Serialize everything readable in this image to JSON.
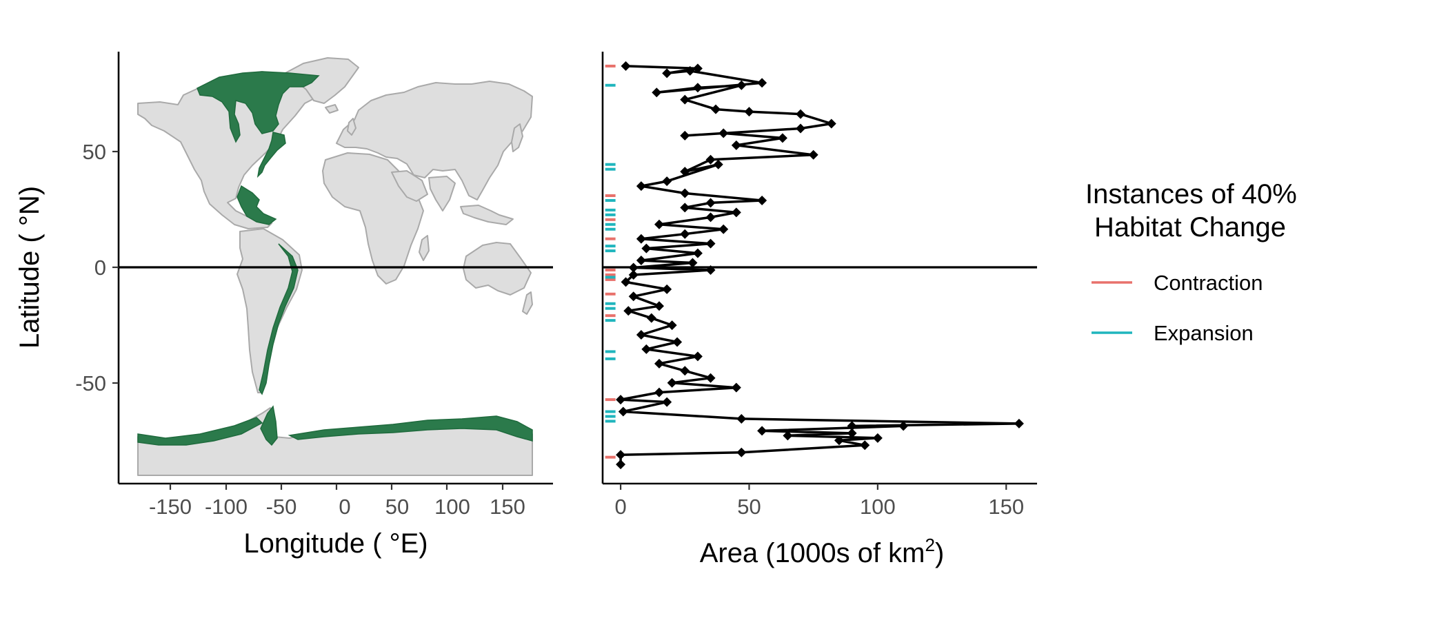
{
  "figure": {
    "y_axis_title": "Latitude ( °N)",
    "x_axis_title_map": "Longitude ( °E)",
    "x_axis_title_area_main": "Area (1000s of km",
    "x_axis_title_area_sup": "2",
    "x_axis_title_area_end": ")"
  },
  "legend": {
    "title_line1": "Instances of 40%",
    "title_line2": "Habitat Change",
    "items": [
      {
        "label": "Contraction",
        "color": "#e8716b"
      },
      {
        "label": "Expansion",
        "color": "#1fb5bd"
      }
    ]
  },
  "colors": {
    "habitat": "#2b7a4b",
    "land": "#dedede",
    "land_outline": "#a9a9a9",
    "series": "#000000"
  },
  "chart_data": [
    {
      "type": "map",
      "xlabel": "Longitude ( °E)",
      "ylabel": "Latitude ( °N)",
      "xlim": [
        -180,
        180
      ],
      "ylim": [
        -90,
        90
      ],
      "x_ticks": [
        -150,
        -100,
        -50,
        0,
        50,
        100,
        150
      ],
      "y_ticks": [
        -50,
        0,
        50
      ],
      "reference_line": {
        "y": 0
      },
      "layer": "coastal habitat (green) along the Americas and Antarctica"
    },
    {
      "type": "line",
      "xlabel": "Area (1000s of km2)",
      "ylabel": "Latitude ( °N)",
      "xlim": [
        -7,
        162
      ],
      "ylim": [
        -90,
        90
      ],
      "x_ticks": [
        0,
        50,
        100,
        150
      ],
      "reference_line": {
        "y": 0
      },
      "orientation": "area (x) by latitude (y)",
      "series": [
        {
          "points": [
            [
              2,
              84
            ],
            [
              30,
              83
            ],
            [
              18,
              81
            ],
            [
              27,
              82
            ],
            [
              55,
              77
            ],
            [
              14,
              73
            ],
            [
              30,
              75
            ],
            [
              47,
              76
            ],
            [
              25,
              70
            ],
            [
              37,
              66
            ],
            [
              50,
              65
            ],
            [
              70,
              64
            ],
            [
              82,
              60
            ],
            [
              70,
              58
            ],
            [
              25,
              55
            ],
            [
              40,
              56
            ],
            [
              63,
              54
            ],
            [
              45,
              51
            ],
            [
              75,
              47
            ],
            [
              35,
              45
            ],
            [
              25,
              40
            ],
            [
              38,
              43
            ],
            [
              18,
              36
            ],
            [
              8,
              34
            ],
            [
              25,
              31
            ],
            [
              55,
              28
            ],
            [
              35,
              27
            ],
            [
              25,
              25
            ],
            [
              45,
              23
            ],
            [
              35,
              21
            ],
            [
              15,
              18
            ],
            [
              40,
              16
            ],
            [
              25,
              14
            ],
            [
              8,
              12
            ],
            [
              35,
              10
            ],
            [
              10,
              8
            ],
            [
              30,
              6
            ],
            [
              8,
              3
            ],
            [
              28,
              2
            ],
            [
              5,
              0
            ],
            [
              35,
              -1
            ],
            [
              5,
              -3
            ],
            [
              2,
              -6
            ],
            [
              18,
              -9
            ],
            [
              5,
              -12
            ],
            [
              15,
              -16
            ],
            [
              3,
              -18
            ],
            [
              12,
              -21
            ],
            [
              20,
              -24
            ],
            [
              8,
              -28
            ],
            [
              22,
              -31
            ],
            [
              10,
              -34
            ],
            [
              30,
              -37
            ],
            [
              15,
              -40
            ],
            [
              25,
              -43
            ],
            [
              35,
              -46
            ],
            [
              20,
              -48
            ],
            [
              45,
              -50
            ],
            [
              15,
              -52
            ],
            [
              0,
              -55
            ],
            [
              18,
              -56
            ],
            [
              1,
              -60
            ],
            [
              47,
              -63
            ],
            [
              155,
              -65
            ],
            [
              90,
              -66
            ],
            [
              110,
              -66
            ],
            [
              55,
              -68
            ],
            [
              90,
              -69
            ],
            [
              65,
              -70
            ],
            [
              100,
              -71
            ],
            [
              85,
              -72
            ],
            [
              95,
              -74
            ],
            [
              47,
              -77
            ],
            [
              0,
              -78
            ],
            [
              0,
              -82
            ]
          ]
        }
      ],
      "habitat_change_marks": [
        {
          "type": "Contraction",
          "lat": 84
        },
        {
          "type": "Expansion",
          "lat": 76
        },
        {
          "type": "Expansion",
          "lat": 43
        },
        {
          "type": "Expansion",
          "lat": 41
        },
        {
          "type": "Contraction",
          "lat": 30
        },
        {
          "type": "Expansion",
          "lat": 28
        },
        {
          "type": "Expansion",
          "lat": 24
        },
        {
          "type": "Expansion",
          "lat": 22
        },
        {
          "type": "Contraction",
          "lat": 20
        },
        {
          "type": "Expansion",
          "lat": 18
        },
        {
          "type": "Expansion",
          "lat": 16
        },
        {
          "type": "Contraction",
          "lat": 12
        },
        {
          "type": "Expansion",
          "lat": 9
        },
        {
          "type": "Expansion",
          "lat": 7
        },
        {
          "type": "Contraction",
          "lat": -1
        },
        {
          "type": "Contraction",
          "lat": -3
        },
        {
          "type": "Contraction",
          "lat": -5
        },
        {
          "type": "Expansion",
          "lat": -4
        },
        {
          "type": "Contraction",
          "lat": -11
        },
        {
          "type": "Expansion",
          "lat": -15
        },
        {
          "type": "Expansion",
          "lat": -17
        },
        {
          "type": "Contraction",
          "lat": -20
        },
        {
          "type": "Expansion",
          "lat": -22
        },
        {
          "type": "Expansion",
          "lat": -35
        },
        {
          "type": "Expansion",
          "lat": -38
        },
        {
          "type": "Contraction",
          "lat": -55
        },
        {
          "type": "Expansion",
          "lat": -60
        },
        {
          "type": "Expansion",
          "lat": -62
        },
        {
          "type": "Expansion",
          "lat": -64
        },
        {
          "type": "Contraction",
          "lat": -79
        }
      ]
    }
  ]
}
